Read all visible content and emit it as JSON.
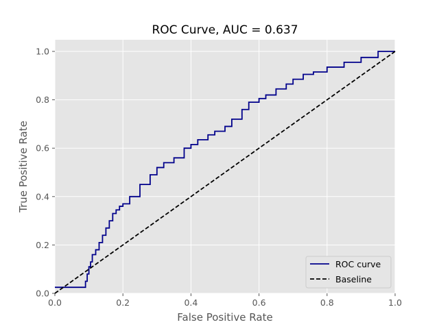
{
  "chart_data": {
    "type": "line",
    "title": "ROC Curve, AUC = 0.637",
    "xlabel": "False Positive Rate",
    "ylabel": "True Positive Rate",
    "xlim": [
      0,
      1
    ],
    "ylim": [
      0,
      1
    ],
    "xticks": [
      "0.0",
      "0.2",
      "0.4",
      "0.6",
      "0.8",
      "1.0"
    ],
    "yticks": [
      "0.0",
      "0.2",
      "0.4",
      "0.6",
      "0.8",
      "1.0"
    ],
    "grid": true,
    "legend_position": "bottom-right",
    "series": [
      {
        "name": "ROC curve",
        "color": "#00008b",
        "style": "solid",
        "x": [
          0.0,
          0.085,
          0.09,
          0.095,
          0.1,
          0.105,
          0.11,
          0.12,
          0.13,
          0.14,
          0.15,
          0.16,
          0.17,
          0.18,
          0.19,
          0.2,
          0.22,
          0.25,
          0.28,
          0.3,
          0.32,
          0.35,
          0.38,
          0.4,
          0.42,
          0.45,
          0.47,
          0.5,
          0.52,
          0.55,
          0.57,
          0.6,
          0.62,
          0.65,
          0.68,
          0.7,
          0.73,
          0.76,
          0.8,
          0.85,
          0.9,
          0.95,
          1.0
        ],
        "y": [
          0.025,
          0.025,
          0.05,
          0.08,
          0.11,
          0.13,
          0.16,
          0.18,
          0.21,
          0.24,
          0.27,
          0.3,
          0.33,
          0.345,
          0.36,
          0.37,
          0.4,
          0.45,
          0.49,
          0.52,
          0.54,
          0.56,
          0.6,
          0.615,
          0.635,
          0.655,
          0.67,
          0.69,
          0.72,
          0.76,
          0.79,
          0.805,
          0.82,
          0.845,
          0.865,
          0.885,
          0.905,
          0.915,
          0.935,
          0.955,
          0.975,
          1.0,
          1.0
        ]
      },
      {
        "name": "Baseline",
        "color": "#000000",
        "style": "dashed",
        "x": [
          0.0,
          1.0
        ],
        "y": [
          0.0,
          1.0
        ]
      }
    ]
  }
}
